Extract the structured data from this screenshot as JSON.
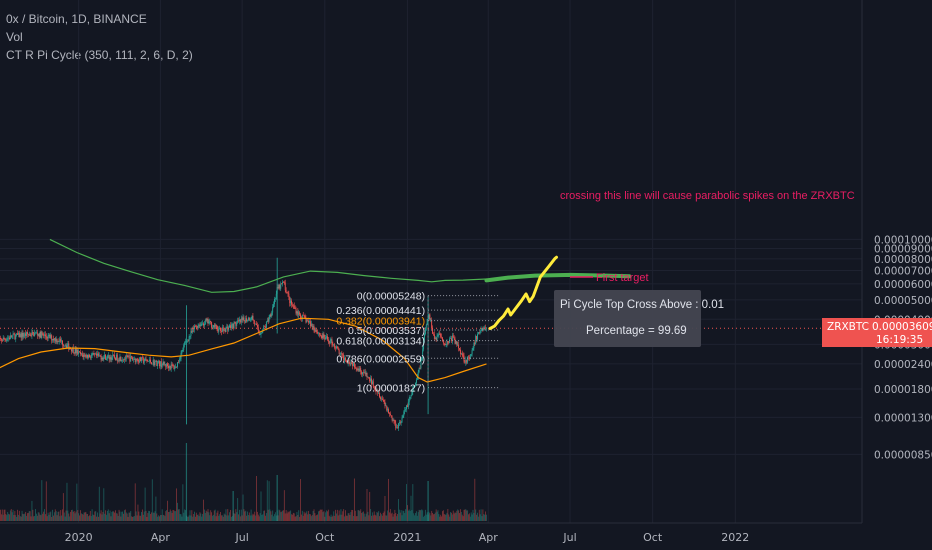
{
  "legend": {
    "symbol": "0x / Bitcoin, 1D, BINANCE",
    "volume": "Vol",
    "indicator": "CT R Pi Cycle (350, 111, 2, 6, D, 2)"
  },
  "colors": {
    "background": "#131722",
    "grid": "#1e2230",
    "axis_text": "#b2b5be",
    "candle_up": "#26a69a",
    "candle_down": "#ef5350",
    "ma_350": "#4caf50",
    "ma_111": "#ff9800",
    "drawing": "#ffeb3b",
    "annotation": "#e91e63",
    "price_tag": "#ef5350"
  },
  "price_tag": {
    "label": "ZRXBTC",
    "value": "0.00003609",
    "countdown": "16:19:35"
  },
  "chart_data": {
    "type": "line",
    "title": "0x / Bitcoin, 1D, BINANCE",
    "y_scale": "log",
    "y_ticks": [
      "0.00010000",
      "0.00009000",
      "0.00008000",
      "0.00007000",
      "0.00006000",
      "0.00005000",
      "0.00004000",
      "0.00003000",
      "0.00002400",
      "0.00001800",
      "0.00001300",
      "0.00000850"
    ],
    "x_ticks": [
      "2020",
      "Apr",
      "Jul",
      "Oct",
      "2021",
      "Apr",
      "Jul",
      "Oct",
      "2022"
    ],
    "fib_levels": [
      {
        "label": "0(0.00005248)",
        "value": 5.248e-05
      },
      {
        "label": "0.236(0.00004441)",
        "value": 4.441e-05
      },
      {
        "label": "0.382(0.00003941)",
        "value": 3.941e-05
      },
      {
        "label": "0.5(0.00003537)",
        "value": 3.537e-05
      },
      {
        "label": "0.618(0.00003134)",
        "value": 3.134e-05
      },
      {
        "label": "0.786(0.00002559)",
        "value": 2.559e-05
      },
      {
        "label": "1(0.00001827)",
        "value": 1.827e-05
      }
    ],
    "annotations": {
      "parabolic_note": "crossing this line will cause parabolic spikes on the ZRXBTC",
      "first_target": "First target"
    },
    "tooltip": {
      "line1": "Pi Cycle Top Cross Above : 0.01",
      "line2": "Percentage = 99.69"
    },
    "last_price": 3.609e-05
  }
}
